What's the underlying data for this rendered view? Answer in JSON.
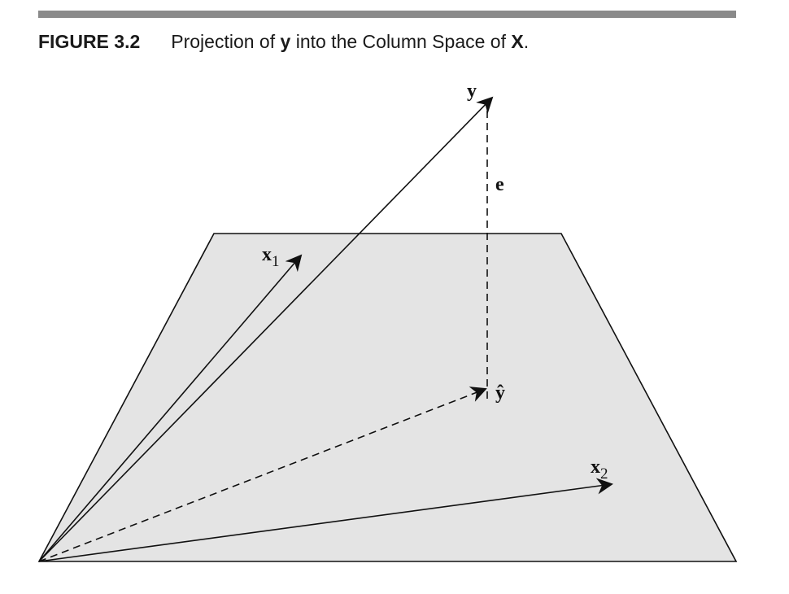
{
  "caption": {
    "figure_number": "FIGURE 3.2",
    "text_before_y": "Projection of ",
    "y_symbol": "y",
    "text_middle": " into the Column Space of ",
    "x_symbol": "X",
    "text_end": "."
  },
  "labels": {
    "y": "y",
    "e": "e",
    "y_hat": "ŷ",
    "x1_base": "x",
    "x1_sub": "1",
    "x2_base": "x",
    "x2_sub": "2"
  },
  "colors": {
    "plane_fill": "#e4e4e4",
    "line": "#111111",
    "rule": "#8a8a8a"
  }
}
